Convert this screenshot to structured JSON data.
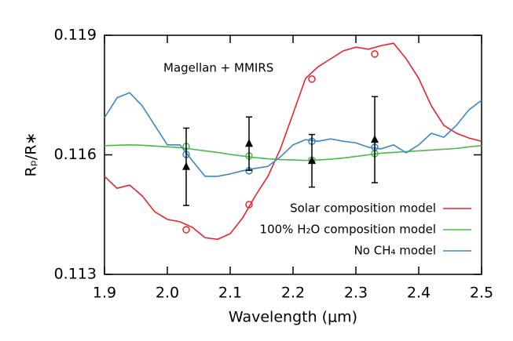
{
  "chart_data": {
    "type": "line",
    "xlabel": "Wavelength (μm)",
    "ylabel": "Rₚ/R∗",
    "annotation": "Magellan + MMIRS",
    "xlim": [
      1.9,
      2.5
    ],
    "ylim": [
      0.113,
      0.119
    ],
    "xticks": [
      1.9,
      {
        "value": 2,
        "label": "2.0"
      },
      2.1,
      2.2,
      2.3,
      2.4,
      2.5
    ],
    "yticks": [
      0.113,
      0.116,
      0.119
    ],
    "x": [
      1.9,
      1.92,
      1.94,
      1.96,
      1.98,
      2.0,
      2.02,
      2.04,
      2.06,
      2.08,
      2.1,
      2.12,
      2.14,
      2.16,
      2.18,
      2.2,
      2.22,
      2.24,
      2.26,
      2.28,
      2.3,
      2.32,
      2.34,
      2.36,
      2.38,
      2.4,
      2.42,
      2.44,
      2.46,
      2.48,
      2.5
    ],
    "binned_x": [
      2.03,
      2.13,
      2.23,
      2.33
    ],
    "series": [
      {
        "name": "Solar composition model",
        "color": "#e8242b",
        "values": [
          0.11546,
          0.11516,
          0.11524,
          0.11497,
          0.11457,
          0.11438,
          0.11432,
          0.11418,
          0.11392,
          0.11388,
          0.11402,
          0.11442,
          0.11497,
          0.11546,
          0.11615,
          0.11703,
          0.11792,
          0.11821,
          0.11841,
          0.11861,
          0.1187,
          0.11865,
          0.11874,
          0.1188,
          0.11841,
          0.11792,
          0.11723,
          0.11674,
          0.11654,
          0.11642,
          0.11634
        ],
        "binned_values": [
          0.11412,
          0.11475,
          0.1179,
          0.11853
        ]
      },
      {
        "name": "100% H₂O composition model",
        "color": "#4cb848",
        "values": [
          0.11623,
          0.11624,
          0.11625,
          0.11624,
          0.11622,
          0.1162,
          0.11618,
          0.11614,
          0.1161,
          0.11606,
          0.11601,
          0.11597,
          0.11593,
          0.1159,
          0.11588,
          0.11587,
          0.11586,
          0.11587,
          0.11589,
          0.11592,
          0.11596,
          0.116,
          0.11604,
          0.11606,
          0.11608,
          0.1161,
          0.11612,
          0.11614,
          0.11616,
          0.1162,
          0.11623
        ],
        "binned_values": [
          0.11621,
          0.11597,
          0.11587,
          0.11603
        ]
      },
      {
        "name": "No CH₄ model",
        "color": "#3d85c6",
        "values": [
          0.11693,
          0.11743,
          0.11756,
          0.11723,
          0.11674,
          0.11625,
          0.11625,
          0.11585,
          0.11546,
          0.11546,
          0.11552,
          0.1156,
          0.11566,
          0.11571,
          0.11595,
          0.11625,
          0.11638,
          0.11634,
          0.1164,
          0.11634,
          0.1163,
          0.11619,
          0.11615,
          0.11625,
          0.11605,
          0.11625,
          0.11654,
          0.11644,
          0.11674,
          0.11713,
          0.11737
        ],
        "binned_values": [
          0.11601,
          0.1156,
          0.11634,
          0.11619
        ]
      }
    ],
    "observations": {
      "x": [
        2.03,
        2.13,
        2.23,
        2.33
      ],
      "values": [
        0.1157,
        0.11628,
        0.11585,
        0.11638
      ],
      "errors": [
        0.00097,
        0.00067,
        0.00066,
        0.00108
      ],
      "color": "#000000"
    }
  }
}
